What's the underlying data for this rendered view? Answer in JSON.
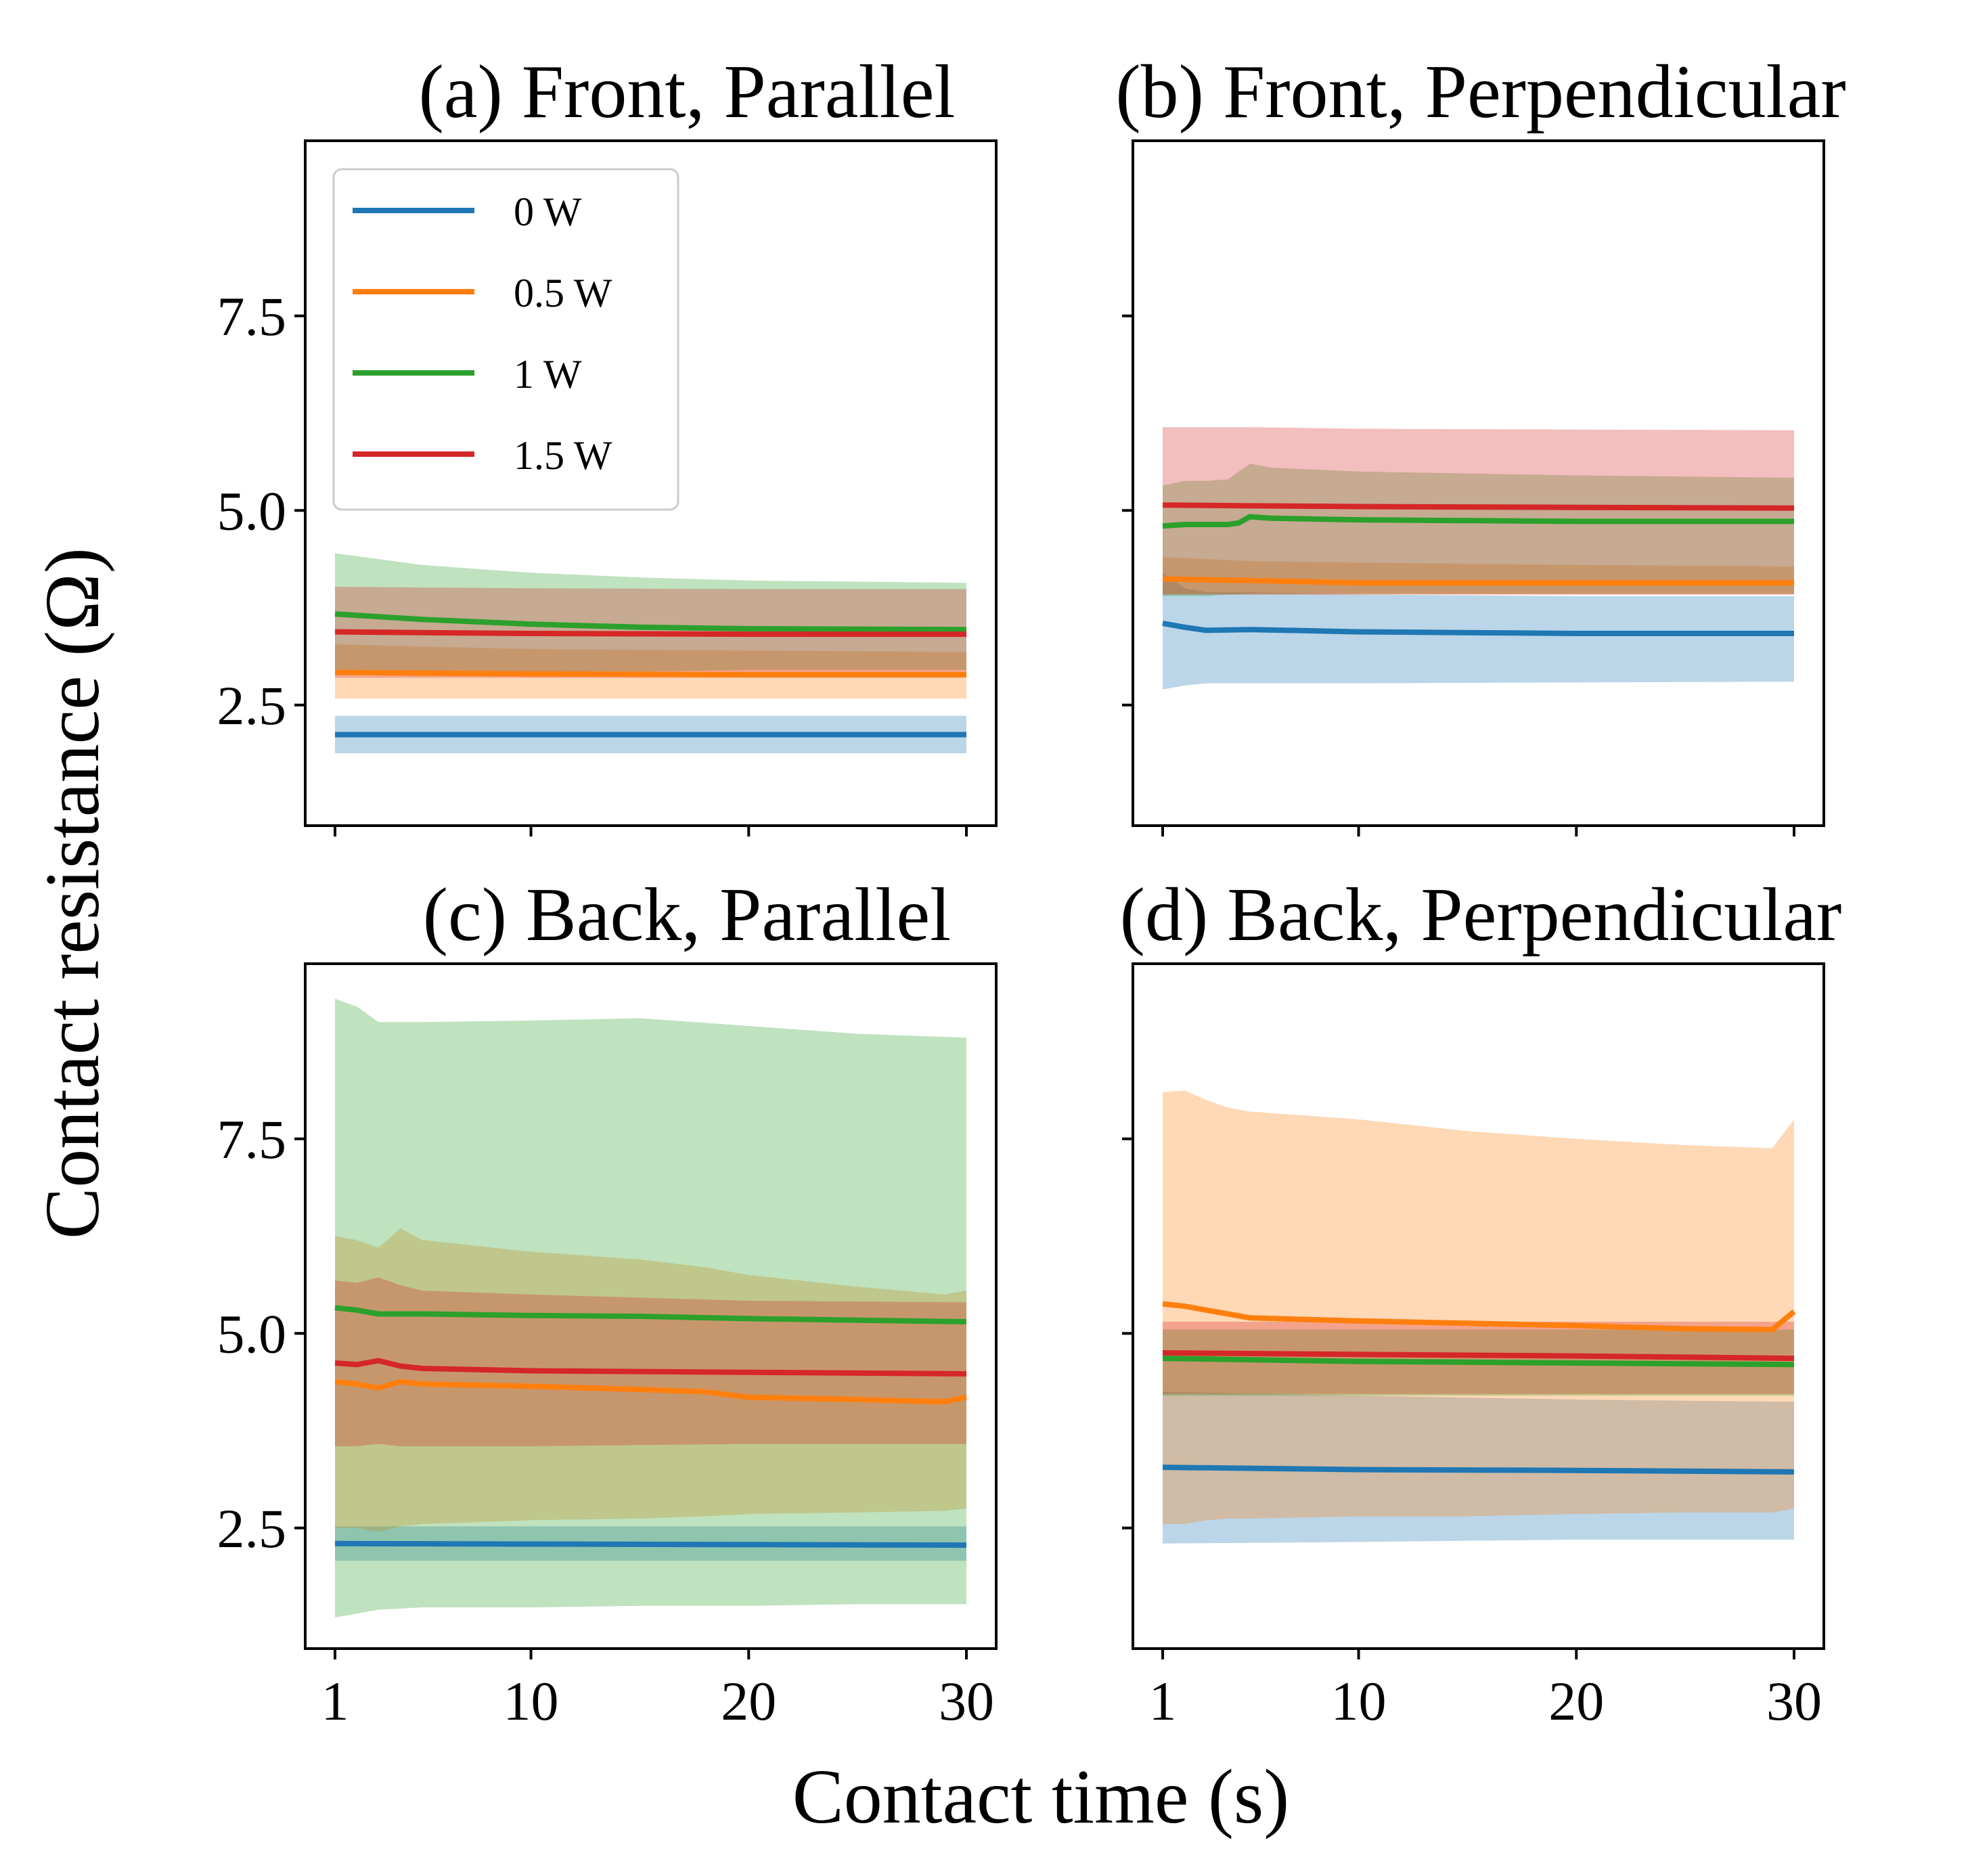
{
  "figure": {
    "xlabel": "Contact time (s)",
    "ylabel": "Contact resistance (Ω)"
  },
  "colors": {
    "0 W": "#1f77b4",
    "0.5 W": "#ff7f0e",
    "1 W": "#2ca02c",
    "1.5 W": "#d62728"
  },
  "chart_data": [
    {
      "type": "line",
      "title": "(a) Front, Parallel",
      "xlim": [
        1,
        30
      ],
      "ylim": [
        0.95,
        9.75
      ],
      "xticks": [
        1,
        10,
        20,
        30
      ],
      "yticks": [
        2.5,
        5.0,
        7.5
      ],
      "ytick_labels": [
        "2.5",
        "5.0",
        "7.5"
      ],
      "xtick_labels": [],
      "legend": {
        "position": "upper-left",
        "entries": [
          "0 W",
          "0.5 W",
          "1 W",
          "1.5 W"
        ]
      },
      "series": [
        {
          "name": "0 W",
          "x": [
            1,
            30
          ],
          "y": [
            2.12,
            2.12
          ],
          "band_low": [
            1.88,
            1.88
          ],
          "band_high": [
            2.36,
            2.36
          ]
        },
        {
          "name": "0.5 W",
          "x": [
            1,
            5,
            10,
            20,
            30
          ],
          "y": [
            2.92,
            2.91,
            2.9,
            2.89,
            2.89
          ],
          "band_low": [
            2.58,
            2.58,
            2.58,
            2.58,
            2.58
          ],
          "band_high": [
            3.28,
            3.25,
            3.22,
            3.2,
            3.18
          ]
        },
        {
          "name": "1 W",
          "x": [
            1,
            5,
            10,
            15,
            20,
            30
          ],
          "y": [
            3.67,
            3.6,
            3.54,
            3.5,
            3.48,
            3.47
          ],
          "band_low": [
            2.9,
            2.9,
            2.92,
            2.93,
            2.95,
            2.95
          ],
          "band_high": [
            4.45,
            4.3,
            4.2,
            4.14,
            4.1,
            4.07
          ]
        },
        {
          "name": "1.5 W",
          "x": [
            1,
            5,
            10,
            20,
            30
          ],
          "y": [
            3.44,
            3.43,
            3.42,
            3.41,
            3.41
          ],
          "band_low": [
            2.85,
            2.85,
            2.85,
            2.85,
            2.85
          ],
          "band_high": [
            4.02,
            4.01,
            4.0,
            3.99,
            3.99
          ]
        }
      ]
    },
    {
      "type": "line",
      "title": "(b) Front, Perpendicular",
      "xlim": [
        1,
        30
      ],
      "ylim": [
        0.95,
        9.75
      ],
      "xticks": [
        1,
        10,
        20,
        30
      ],
      "yticks": [
        2.5,
        5.0,
        7.5
      ],
      "ytick_labels": [],
      "xtick_labels": [],
      "series": [
        {
          "name": "0 W",
          "x": [
            1,
            2,
            3,
            5,
            10,
            20,
            30
          ],
          "y": [
            3.55,
            3.5,
            3.46,
            3.47,
            3.44,
            3.42,
            3.42
          ],
          "band_low": [
            2.7,
            2.75,
            2.78,
            2.78,
            2.78,
            2.79,
            2.8
          ],
          "band_high": [
            4.2,
            4.0,
            3.95,
            3.95,
            3.92,
            3.9,
            3.9
          ]
        },
        {
          "name": "0.5 W",
          "x": [
            1,
            5,
            10,
            20,
            30
          ],
          "y": [
            4.12,
            4.1,
            4.07,
            4.07,
            4.07
          ],
          "band_low": [
            3.92,
            3.92,
            3.92,
            3.92,
            3.92
          ],
          "band_high": [
            4.4,
            4.35,
            4.33,
            4.3,
            4.28
          ]
        },
        {
          "name": "1 W",
          "x": [
            1,
            2,
            3,
            4,
            4.5,
            5,
            6,
            10,
            20,
            30
          ],
          "y": [
            4.8,
            4.82,
            4.82,
            4.82,
            4.84,
            4.92,
            4.9,
            4.88,
            4.86,
            4.86
          ],
          "band_low": [
            3.9,
            3.9,
            3.9,
            3.92,
            3.92,
            3.93,
            3.93,
            3.93,
            3.93,
            3.93
          ],
          "band_high": [
            5.32,
            5.38,
            5.38,
            5.4,
            5.5,
            5.6,
            5.55,
            5.5,
            5.45,
            5.42
          ]
        },
        {
          "name": "1.5 W",
          "x": [
            1,
            5,
            10,
            20,
            30
          ],
          "y": [
            5.07,
            5.06,
            5.05,
            5.04,
            5.03
          ],
          "band_low": [
            3.92,
            3.92,
            3.92,
            3.92,
            3.92
          ],
          "band_high": [
            6.07,
            6.07,
            6.05,
            6.04,
            6.03
          ]
        }
      ]
    },
    {
      "type": "line",
      "title": "(c) Back, Parallel",
      "xlim": [
        1,
        30
      ],
      "ylim": [
        0.95,
        9.75
      ],
      "xticks": [
        1,
        10,
        20,
        30
      ],
      "yticks": [
        2.5,
        5.0,
        7.5
      ],
      "ytick_labels": [
        "2.5",
        "5.0",
        "7.5"
      ],
      "xtick_labels": [
        "1",
        "10",
        "20",
        "30"
      ],
      "series": [
        {
          "name": "0 W",
          "x": [
            1,
            30
          ],
          "y": [
            2.3,
            2.28
          ],
          "band_low": [
            2.08,
            2.08
          ],
          "band_high": [
            2.52,
            2.52
          ]
        },
        {
          "name": "0.5 W",
          "x": [
            1,
            2,
            3,
            4,
            5,
            10,
            15,
            18,
            20,
            25,
            29,
            30
          ],
          "y": [
            4.38,
            4.35,
            4.3,
            4.38,
            4.35,
            4.32,
            4.28,
            4.25,
            4.18,
            4.15,
            4.12,
            4.18
          ],
          "band_low": [
            2.5,
            2.5,
            2.45,
            2.52,
            2.55,
            2.6,
            2.62,
            2.65,
            2.68,
            2.7,
            2.72,
            2.75
          ],
          "band_high": [
            6.25,
            6.2,
            6.1,
            6.35,
            6.2,
            6.05,
            5.95,
            5.85,
            5.75,
            5.6,
            5.5,
            5.55
          ]
        },
        {
          "name": "1 W",
          "x": [
            1,
            2,
            3,
            5,
            10,
            15,
            20,
            25,
            30
          ],
          "y": [
            5.33,
            5.3,
            5.25,
            5.25,
            5.23,
            5.22,
            5.19,
            5.17,
            5.15
          ],
          "band_low": [
            1.35,
            1.4,
            1.45,
            1.48,
            1.48,
            1.5,
            1.5,
            1.52,
            1.52
          ],
          "band_high": [
            9.3,
            9.2,
            9.0,
            9.0,
            9.02,
            9.05,
            8.95,
            8.85,
            8.8
          ]
        },
        {
          "name": "1.5 W",
          "x": [
            1,
            2,
            3,
            4,
            5,
            10,
            20,
            30
          ],
          "y": [
            4.62,
            4.6,
            4.65,
            4.58,
            4.55,
            4.52,
            4.5,
            4.48
          ],
          "band_low": [
            3.55,
            3.55,
            3.58,
            3.55,
            3.55,
            3.55,
            3.58,
            3.58
          ],
          "band_high": [
            5.68,
            5.65,
            5.72,
            5.62,
            5.55,
            5.5,
            5.42,
            5.4
          ]
        }
      ]
    },
    {
      "type": "line",
      "title": "(d) Back, Perpendicular",
      "xlim": [
        1,
        30
      ],
      "ylim": [
        0.95,
        9.75
      ],
      "xticks": [
        1,
        10,
        20,
        30
      ],
      "yticks": [
        2.5,
        5.0,
        7.5
      ],
      "ytick_labels": [],
      "xtick_labels": [
        "1",
        "10",
        "20",
        "30"
      ],
      "series": [
        {
          "name": "0 W",
          "x": [
            1,
            10,
            20,
            30
          ],
          "y": [
            3.28,
            3.25,
            3.24,
            3.22
          ],
          "band_low": [
            2.3,
            2.32,
            2.35,
            2.35
          ],
          "band_high": [
            4.25,
            4.2,
            4.15,
            4.12
          ]
        },
        {
          "name": "0.5 W",
          "x": [
            1,
            2,
            3,
            4,
            5,
            10,
            15,
            20,
            25,
            29,
            30
          ],
          "y": [
            5.38,
            5.35,
            5.3,
            5.25,
            5.2,
            5.16,
            5.13,
            5.1,
            5.06,
            5.05,
            5.28
          ],
          "band_low": [
            2.55,
            2.55,
            2.6,
            2.62,
            2.62,
            2.65,
            2.65,
            2.68,
            2.7,
            2.7,
            2.75
          ],
          "band_high": [
            8.1,
            8.12,
            8.0,
            7.9,
            7.85,
            7.75,
            7.6,
            7.5,
            7.42,
            7.38,
            7.75
          ]
        },
        {
          "name": "1 W",
          "x": [
            1,
            10,
            20,
            30
          ],
          "y": [
            4.68,
            4.64,
            4.62,
            4.6
          ],
          "band_low": [
            4.2,
            4.2,
            4.2,
            4.2
          ],
          "band_high": [
            5.05,
            5.05,
            5.05,
            5.05
          ]
        },
        {
          "name": "1.5 W",
          "x": [
            1,
            10,
            20,
            30
          ],
          "y": [
            4.75,
            4.73,
            4.71,
            4.68
          ],
          "band_low": [
            4.22,
            4.22,
            4.22,
            4.22
          ],
          "band_high": [
            5.15,
            5.15,
            5.15,
            5.15
          ]
        }
      ]
    }
  ]
}
